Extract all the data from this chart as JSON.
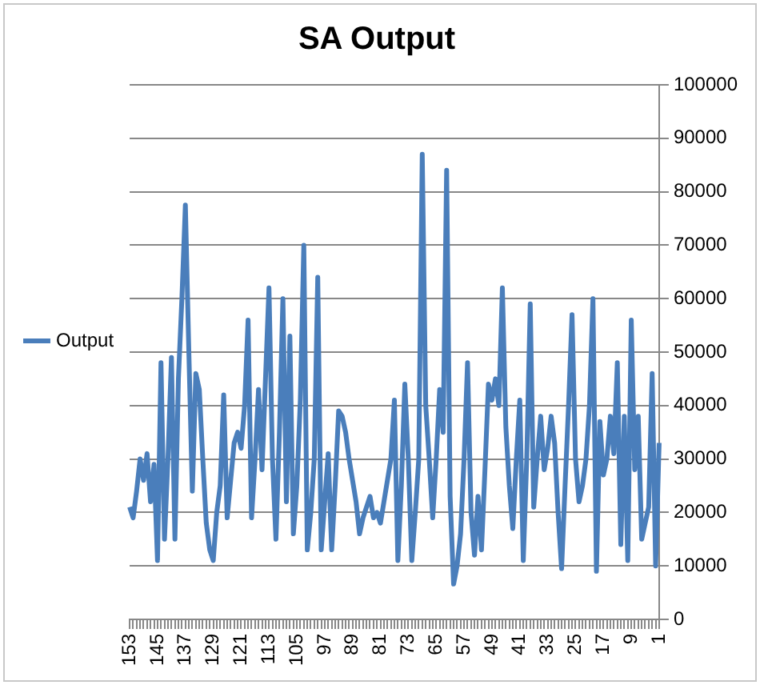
{
  "chart_data": {
    "type": "line",
    "title": "SA Output",
    "categories": [
      "153",
      null,
      null,
      null,
      null,
      null,
      null,
      null,
      "145",
      null,
      null,
      null,
      null,
      null,
      null,
      null,
      "137",
      null,
      null,
      null,
      null,
      null,
      null,
      null,
      "129",
      null,
      null,
      null,
      null,
      null,
      null,
      null,
      "121",
      null,
      null,
      null,
      null,
      null,
      null,
      null,
      "113",
      null,
      null,
      null,
      null,
      null,
      null,
      null,
      "105",
      null,
      null,
      null,
      null,
      null,
      null,
      null,
      "97",
      null,
      null,
      null,
      null,
      null,
      null,
      null,
      "89",
      null,
      null,
      null,
      null,
      null,
      null,
      null,
      "81",
      null,
      null,
      null,
      null,
      null,
      null,
      null,
      "73",
      null,
      null,
      null,
      null,
      null,
      null,
      null,
      "65",
      null,
      null,
      null,
      null,
      null,
      null,
      null,
      "57",
      null,
      null,
      null,
      null,
      null,
      null,
      null,
      "49",
      null,
      null,
      null,
      null,
      null,
      null,
      null,
      "41",
      null,
      null,
      null,
      null,
      null,
      null,
      null,
      "33",
      null,
      null,
      null,
      null,
      null,
      null,
      null,
      "25",
      null,
      null,
      null,
      null,
      null,
      null,
      null,
      "17",
      null,
      null,
      null,
      null,
      null,
      null,
      null,
      "9",
      null,
      null,
      null,
      null,
      null,
      null,
      null,
      "1"
    ],
    "series": [
      {
        "name": "Output",
        "color": "#4a7ebb",
        "values": [
          21000,
          19000,
          24000,
          30000,
          26000,
          31000,
          22000,
          29000,
          11000,
          48000,
          15000,
          30000,
          49000,
          15000,
          45000,
          60000,
          77500,
          50000,
          24000,
          46000,
          43000,
          30000,
          18000,
          13000,
          11000,
          20000,
          25000,
          42000,
          19000,
          26000,
          33000,
          35000,
          32000,
          40000,
          56000,
          19000,
          30000,
          43000,
          28000,
          45000,
          62000,
          30000,
          15000,
          35000,
          60000,
          22000,
          53000,
          16000,
          25000,
          41000,
          70000,
          13000,
          20000,
          30000,
          64000,
          13000,
          22000,
          31000,
          13000,
          25000,
          39000,
          38000,
          35000,
          30000,
          26000,
          22000,
          16000,
          19000,
          21000,
          23000,
          19000,
          20000,
          18000,
          22000,
          26000,
          30000,
          41000,
          11000,
          25000,
          44000,
          30000,
          11000,
          20000,
          30000,
          87000,
          40000,
          30000,
          19000,
          30000,
          43000,
          35000,
          84000,
          23000,
          6600,
          10000,
          16000,
          30000,
          48000,
          20000,
          12000,
          23000,
          13000,
          28000,
          44000,
          41000,
          45000,
          40000,
          62000,
          36000,
          25000,
          17000,
          30000,
          41000,
          11000,
          30000,
          59000,
          21000,
          30000,
          38000,
          28000,
          32000,
          38000,
          33000,
          20000,
          9500,
          25000,
          40000,
          57000,
          30000,
          22000,
          25000,
          30000,
          40000,
          60000,
          9000,
          37000,
          27000,
          30000,
          38000,
          31000,
          48000,
          14000,
          38000,
          11000,
          56000,
          28000,
          38000,
          15000,
          18000,
          21000,
          46000,
          10000,
          33000
        ]
      }
    ],
    "ylim": [
      0,
      100000
    ],
    "yticks": [
      0,
      10000,
      20000,
      30000,
      40000,
      50000,
      60000,
      70000,
      80000,
      90000,
      100000
    ],
    "grid": "y",
    "legend": "left",
    "marker": "none",
    "line_style": "solid"
  }
}
